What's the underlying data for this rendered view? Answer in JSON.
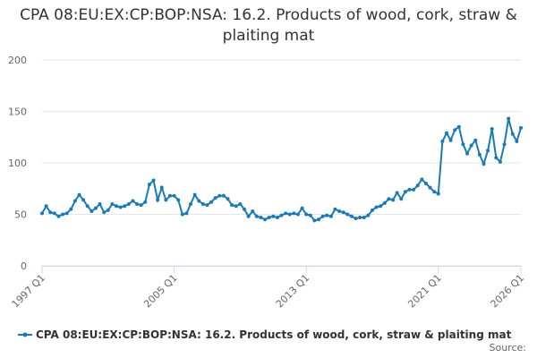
{
  "chart_data": {
    "type": "line",
    "title": "CPA 08:EU:EX:CP:BOP:NSA: 16.2. Products of wood, cork, straw & plaiting mat",
    "source_label": "Source:",
    "categories": [
      "1997 Q1",
      null,
      null,
      null,
      null,
      null,
      null,
      null,
      null,
      null,
      null,
      null,
      null,
      null,
      null,
      null,
      null,
      null,
      null,
      null,
      null,
      null,
      null,
      null,
      null,
      null,
      null,
      null,
      null,
      null,
      null,
      null,
      "2005 Q1",
      null,
      null,
      null,
      null,
      null,
      null,
      null,
      null,
      null,
      null,
      null,
      null,
      null,
      null,
      null,
      null,
      null,
      null,
      null,
      null,
      null,
      null,
      null,
      null,
      null,
      null,
      null,
      null,
      null,
      null,
      null,
      "2013 Q1",
      null,
      null,
      null,
      null,
      null,
      null,
      null,
      null,
      null,
      null,
      null,
      null,
      null,
      null,
      null,
      null,
      null,
      null,
      null,
      null,
      null,
      null,
      null,
      null,
      null,
      null,
      null,
      null,
      null,
      null,
      null,
      "2021 Q1",
      null,
      null,
      null,
      null,
      null,
      null,
      null,
      null,
      null,
      null,
      null,
      null,
      null,
      null,
      null,
      null,
      null,
      null,
      null,
      "2026 Q1"
    ],
    "series": [
      {
        "name": "CPA 08:EU:EX:CP:BOP:NSA: 16.2. Products of wood, cork, straw & plaiting mat",
        "color": "#1a7ab8",
        "values": [
          51,
          58,
          52,
          51,
          48,
          50,
          51,
          55,
          63,
          69,
          64,
          58,
          53,
          56,
          60,
          52,
          54,
          60,
          58,
          57,
          58,
          60,
          63,
          60,
          59,
          62,
          79,
          83,
          64,
          76,
          64,
          68,
          68,
          64,
          50,
          51,
          60,
          69,
          63,
          60,
          59,
          62,
          66,
          68,
          68,
          65,
          59,
          58,
          60,
          55,
          48,
          53,
          48,
          47,
          45,
          47,
          48,
          47,
          49,
          51,
          50,
          51,
          50,
          56,
          50,
          49,
          44,
          45,
          48,
          49,
          48,
          55,
          53,
          52,
          50,
          48,
          46,
          47,
          47,
          49,
          54,
          57,
          58,
          61,
          65,
          64,
          71,
          65,
          72,
          74,
          74,
          78,
          84,
          80,
          76,
          72,
          70,
          121,
          129,
          122,
          132,
          135,
          118,
          109,
          117,
          122,
          108,
          99,
          112,
          133,
          105,
          101,
          118,
          143,
          128,
          121,
          134
        ]
      }
    ],
    "ylim": [
      0,
      200
    ],
    "yticks": [
      0,
      50,
      100,
      150,
      200
    ],
    "grid": true,
    "legend": "bottom"
  }
}
